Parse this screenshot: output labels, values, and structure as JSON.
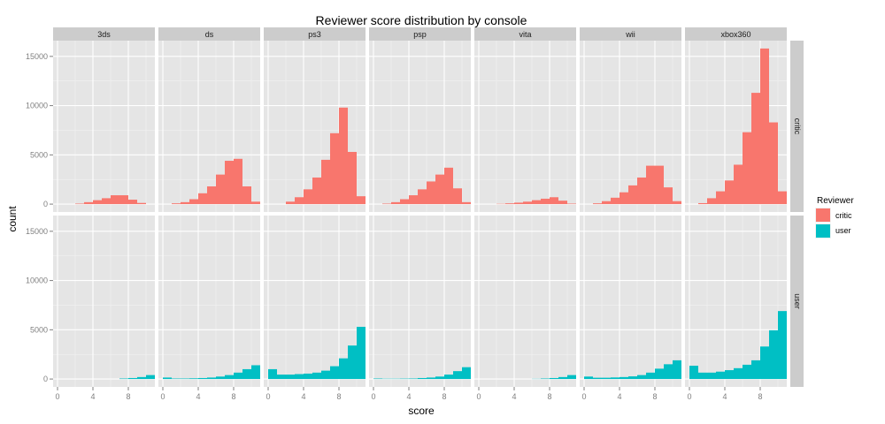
{
  "chart_data": {
    "type": "bar",
    "title": "Reviewer score distribution by console",
    "xlabel": "score",
    "ylabel": "count",
    "facet_columns": [
      "3ds",
      "ds",
      "ps3",
      "psp",
      "vita",
      "wii",
      "xbox360"
    ],
    "facet_rows": [
      "critic",
      "user"
    ],
    "bin_width": 1,
    "bin_starts": [
      0,
      1,
      2,
      3,
      4,
      5,
      6,
      7,
      8,
      9,
      10
    ],
    "xticks": [
      0,
      4,
      8
    ],
    "yticks": [
      0,
      5000,
      10000,
      15000
    ],
    "xlim": [
      -0.5,
      11
    ],
    "ylim": [
      -800,
      16600
    ],
    "legend": {
      "title": "Reviewer",
      "position": "right",
      "items": [
        {
          "label": "critic",
          "color": "#F8766D"
        },
        {
          "label": "user",
          "color": "#00BFC4"
        }
      ]
    },
    "series": [
      {
        "name": "critic",
        "console": "3ds",
        "values": [
          0,
          0,
          50,
          200,
          400,
          600,
          900,
          900,
          450,
          120,
          0
        ]
      },
      {
        "name": "critic",
        "console": "ds",
        "values": [
          0,
          80,
          200,
          500,
          1100,
          1800,
          3000,
          4400,
          4600,
          1800,
          250
        ]
      },
      {
        "name": "critic",
        "console": "ps3",
        "values": [
          0,
          0,
          250,
          700,
          1500,
          2700,
          4500,
          7200,
          9800,
          5300,
          800
        ]
      },
      {
        "name": "critic",
        "console": "psp",
        "values": [
          0,
          50,
          200,
          500,
          900,
          1500,
          2300,
          3000,
          3700,
          1600,
          200
        ]
      },
      {
        "name": "critic",
        "console": "vita",
        "values": [
          0,
          0,
          30,
          80,
          150,
          250,
          400,
          550,
          700,
          350,
          50
        ]
      },
      {
        "name": "critic",
        "console": "wii",
        "values": [
          0,
          80,
          300,
          650,
          1200,
          1900,
          2700,
          3900,
          3900,
          1700,
          300
        ]
      },
      {
        "name": "critic",
        "console": "xbox360",
        "values": [
          0,
          100,
          600,
          1300,
          2400,
          4000,
          7300,
          11300,
          15800,
          8300,
          1300
        ]
      },
      {
        "name": "user",
        "console": "3ds",
        "values": [
          0,
          0,
          0,
          0,
          0,
          0,
          0,
          50,
          100,
          200,
          400
        ]
      },
      {
        "name": "user",
        "console": "ds",
        "values": [
          150,
          50,
          50,
          70,
          100,
          150,
          250,
          400,
          650,
          1000,
          1400
        ]
      },
      {
        "name": "user",
        "console": "ps3",
        "values": [
          1000,
          450,
          450,
          500,
          550,
          650,
          850,
          1300,
          2100,
          3400,
          5300
        ]
      },
      {
        "name": "user",
        "console": "psp",
        "values": [
          50,
          30,
          30,
          40,
          50,
          100,
          150,
          250,
          450,
          800,
          1200
        ]
      },
      {
        "name": "user",
        "console": "vita",
        "values": [
          0,
          0,
          0,
          0,
          0,
          0,
          20,
          50,
          100,
          200,
          400
        ]
      },
      {
        "name": "user",
        "console": "wii",
        "values": [
          250,
          130,
          130,
          160,
          200,
          270,
          400,
          650,
          1050,
          1500,
          1900
        ]
      },
      {
        "name": "user",
        "console": "xbox360",
        "values": [
          1350,
          650,
          650,
          750,
          900,
          1100,
          1450,
          1900,
          3300,
          4950,
          6900
        ]
      }
    ]
  }
}
